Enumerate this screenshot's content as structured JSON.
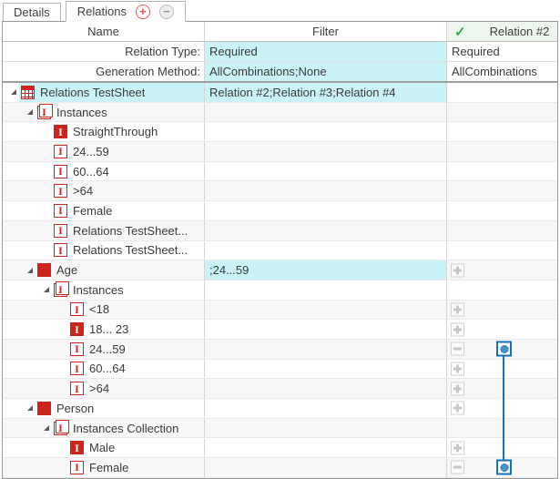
{
  "tabs": [
    {
      "label": "Details",
      "active": false
    },
    {
      "label": "Relations",
      "active": true
    }
  ],
  "tab_buttons": {
    "add": "+",
    "remove": "−"
  },
  "header": {
    "name": "Name",
    "filter": "Filter",
    "relation": "Relation #2",
    "relation_valid_check": "✓"
  },
  "params": [
    {
      "label": "Relation Type:",
      "filter": "Required",
      "relation": "Required"
    },
    {
      "label": "Generation Method:",
      "filter": "AllCombinations;None",
      "relation": "AllCombinations"
    }
  ],
  "icons": {
    "instance_glyph": "I"
  },
  "rows": [
    {
      "label": "Relations TestSheet",
      "level": 0,
      "icon": "testsheet",
      "expander": true,
      "highlight": true,
      "filter": "Relation #2;Relation #3;Relation #4",
      "filter_highlight": true,
      "button": null,
      "connector": null
    },
    {
      "label": "Instances",
      "level": 1,
      "icon": "collection",
      "expander": true,
      "filter": "",
      "button": null,
      "connector": null
    },
    {
      "label": "StraightThrough",
      "level": 2,
      "icon": "instance-red",
      "expander": false,
      "filter": "",
      "button": null,
      "connector": null
    },
    {
      "label": "24...59",
      "level": 2,
      "icon": "instance",
      "expander": false,
      "filter": "",
      "button": null,
      "connector": null
    },
    {
      "label": "60...64",
      "level": 2,
      "icon": "instance",
      "expander": false,
      "filter": "",
      "button": null,
      "connector": null
    },
    {
      "label": ">64",
      "level": 2,
      "icon": "instance",
      "expander": false,
      "filter": "",
      "button": null,
      "connector": null
    },
    {
      "label": "Female",
      "level": 2,
      "icon": "instance",
      "expander": false,
      "filter": "",
      "button": null,
      "connector": null
    },
    {
      "label": "Relations TestSheet...",
      "level": 2,
      "icon": "instance",
      "expander": false,
      "filter": "",
      "button": null,
      "connector": null
    },
    {
      "label": "Relations TestSheet...",
      "level": 2,
      "icon": "instance",
      "expander": false,
      "filter": "",
      "button": null,
      "connector": null
    },
    {
      "label": "Age",
      "level": 1,
      "icon": "parameter",
      "expander": true,
      "filter": ";24...59",
      "filter_highlight": true,
      "button": "plus",
      "connector": null
    },
    {
      "label": "Instances",
      "level": 2,
      "icon": "collection",
      "expander": true,
      "filter": "",
      "button": null,
      "connector": null
    },
    {
      "label": "<18",
      "level": 3,
      "icon": "instance",
      "expander": false,
      "filter": "",
      "button": "plus",
      "connector": null
    },
    {
      "label": "18... 23",
      "level": 3,
      "icon": "instance-red",
      "expander": false,
      "filter": "",
      "button": "plus",
      "connector": null
    },
    {
      "label": "24...59",
      "level": 3,
      "icon": "instance",
      "expander": false,
      "filter": "",
      "button": "minus",
      "connector": "start"
    },
    {
      "label": "60...64",
      "level": 3,
      "icon": "instance",
      "expander": false,
      "filter": "",
      "button": "plus",
      "connector": "mid"
    },
    {
      "label": ">64",
      "level": 3,
      "icon": "instance",
      "expander": false,
      "filter": "",
      "button": "plus",
      "connector": "mid"
    },
    {
      "label": "Person",
      "level": 1,
      "icon": "parameter",
      "expander": true,
      "filter": "",
      "button": "plus",
      "connector": "mid"
    },
    {
      "label": "Instances Collection",
      "level": 2,
      "icon": "collection",
      "expander": true,
      "filter": "",
      "button": null,
      "connector": "mid"
    },
    {
      "label": "Male",
      "level": 3,
      "icon": "instance-red",
      "expander": false,
      "filter": "",
      "button": "plus",
      "connector": "mid"
    },
    {
      "label": "Female",
      "level": 3,
      "icon": "instance",
      "expander": false,
      "filter": "",
      "button": "minus",
      "connector": "end"
    }
  ],
  "colors": {
    "highlight_cyan": "#c9f3f6",
    "icon_red": "#cf241c",
    "link_blue": "#1272ba",
    "link_dot_fill": "#4a92cc",
    "relation_header_bg": "#edf6ee",
    "check_green": "#3ea843",
    "alt_row": "#f7f7f7"
  }
}
